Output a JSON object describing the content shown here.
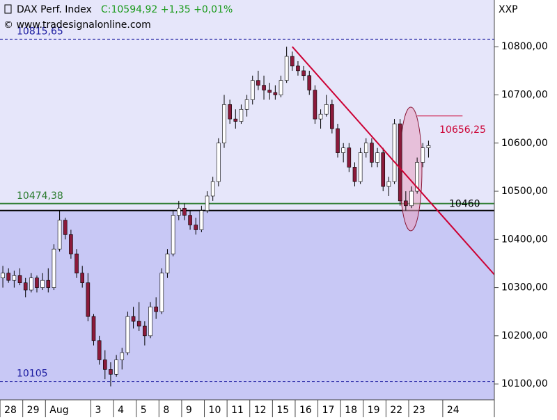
{
  "chart_data": {
    "type": "candlestick",
    "title": "DAX Perf. Index",
    "quote": "C:10594,92 +1,35 +0,01%",
    "source": "© www.tradesignalonline.com",
    "symbol": "XXP",
    "ylim": [
      10067,
      10897
    ],
    "yticks": [
      {
        "value": 10100,
        "label": "10100,00"
      },
      {
        "value": 10200,
        "label": "10200,00"
      },
      {
        "value": 10300,
        "label": "10300,00"
      },
      {
        "value": 10400,
        "label": "10400,00"
      },
      {
        "value": 10500,
        "label": "10500,00"
      },
      {
        "value": 10600,
        "label": "10600,00"
      },
      {
        "value": 10700,
        "label": "10700,00"
      },
      {
        "value": 10800,
        "label": "10800,00"
      }
    ],
    "xlim": [
      -0.5,
      86.6
    ],
    "xticks": [
      {
        "value": 0,
        "label": "28"
      },
      {
        "value": 4,
        "label": "29"
      },
      {
        "value": 8,
        "label": "Aug"
      },
      {
        "value": 16,
        "label": "3"
      },
      {
        "value": 20,
        "label": "4"
      },
      {
        "value": 24,
        "label": "5"
      },
      {
        "value": 28,
        "label": "8"
      },
      {
        "value": 32,
        "label": "9"
      },
      {
        "value": 36,
        "label": "10"
      },
      {
        "value": 40,
        "label": "11"
      },
      {
        "value": 44,
        "label": "12"
      },
      {
        "value": 48,
        "label": "15"
      },
      {
        "value": 52,
        "label": "16"
      },
      {
        "value": 56,
        "label": "17"
      },
      {
        "value": 60,
        "label": "18"
      },
      {
        "value": 64,
        "label": "19"
      },
      {
        "value": 68,
        "label": "22"
      },
      {
        "value": 72,
        "label": "23"
      },
      {
        "value": 78,
        "label": "24"
      }
    ],
    "up_color": "#ffffff",
    "down_color": "#8b1a3a",
    "ohlc": [
      [
        10320,
        10345,
        10300,
        10330
      ],
      [
        10330,
        10340,
        10310,
        10315
      ],
      [
        10315,
        10335,
        10300,
        10325
      ],
      [
        10325,
        10340,
        10305,
        10310
      ],
      [
        10310,
        10320,
        10280,
        10295
      ],
      [
        10295,
        10330,
        10290,
        10320
      ],
      [
        10320,
        10325,
        10290,
        10300
      ],
      [
        10300,
        10330,
        10295,
        10315
      ],
      [
        10315,
        10340,
        10290,
        10300
      ],
      [
        10300,
        10390,
        10295,
        10380
      ],
      [
        10380,
        10460,
        10375,
        10440
      ],
      [
        10440,
        10445,
        10400,
        10410
      ],
      [
        10410,
        10420,
        10360,
        10370
      ],
      [
        10370,
        10380,
        10320,
        10330
      ],
      [
        10330,
        10345,
        10300,
        10310
      ],
      [
        10310,
        10330,
        10230,
        10240
      ],
      [
        10240,
        10245,
        10180,
        10190
      ],
      [
        10190,
        10200,
        10140,
        10150
      ],
      [
        10150,
        10170,
        10110,
        10130
      ],
      [
        10130,
        10145,
        10095,
        10120
      ],
      [
        10120,
        10160,
        10115,
        10150
      ],
      [
        10150,
        10175,
        10130,
        10165
      ],
      [
        10165,
        10250,
        10160,
        10240
      ],
      [
        10240,
        10260,
        10215,
        10230
      ],
      [
        10230,
        10270,
        10210,
        10220
      ],
      [
        10220,
        10230,
        10180,
        10200
      ],
      [
        10200,
        10270,
        10195,
        10260
      ],
      [
        10260,
        10280,
        10235,
        10250
      ],
      [
        10250,
        10340,
        10245,
        10330
      ],
      [
        10330,
        10380,
        10320,
        10370
      ],
      [
        10370,
        10460,
        10365,
        10450
      ],
      [
        10450,
        10480,
        10440,
        10465
      ],
      [
        10465,
        10475,
        10440,
        10450
      ],
      [
        10450,
        10460,
        10420,
        10430
      ],
      [
        10430,
        10445,
        10410,
        10420
      ],
      [
        10420,
        10470,
        10415,
        10460
      ],
      [
        10460,
        10500,
        10455,
        10490
      ],
      [
        10490,
        10530,
        10480,
        10520
      ],
      [
        10520,
        10610,
        10510,
        10600
      ],
      [
        10600,
        10700,
        10590,
        10680
      ],
      [
        10680,
        10690,
        10640,
        10650
      ],
      [
        10650,
        10670,
        10630,
        10645
      ],
      [
        10645,
        10680,
        10640,
        10670
      ],
      [
        10670,
        10700,
        10655,
        10690
      ],
      [
        10690,
        10740,
        10680,
        10730
      ],
      [
        10730,
        10750,
        10710,
        10720
      ],
      [
        10720,
        10740,
        10690,
        10710
      ],
      [
        10710,
        10725,
        10690,
        10705
      ],
      [
        10705,
        10720,
        10690,
        10700
      ],
      [
        10700,
        10740,
        10695,
        10730
      ],
      [
        10730,
        10800,
        10725,
        10780
      ],
      [
        10780,
        10790,
        10750,
        10760
      ],
      [
        10760,
        10770,
        10740,
        10750
      ],
      [
        10750,
        10760,
        10730,
        10740
      ],
      [
        10740,
        10750,
        10700,
        10710
      ],
      [
        10710,
        10720,
        10640,
        10650
      ],
      [
        10650,
        10670,
        10630,
        10660
      ],
      [
        10660,
        10700,
        10655,
        10680
      ],
      [
        10680,
        10690,
        10620,
        10630
      ],
      [
        10630,
        10640,
        10570,
        10580
      ],
      [
        10580,
        10600,
        10560,
        10590
      ],
      [
        10590,
        10600,
        10540,
        10550
      ],
      [
        10550,
        10560,
        10510,
        10520
      ],
      [
        10520,
        10590,
        10515,
        10580
      ],
      [
        10580,
        10610,
        10570,
        10600
      ],
      [
        10600,
        10610,
        10550,
        10560
      ],
      [
        10560,
        10590,
        10550,
        10580
      ],
      [
        10580,
        10590,
        10500,
        10510
      ],
      [
        10510,
        10530,
        10490,
        10520
      ],
      [
        10520,
        10650,
        10515,
        10640
      ],
      [
        10640,
        10650,
        10470,
        10480
      ],
      [
        10480,
        10500,
        10460,
        10470
      ],
      [
        10470,
        10510,
        10465,
        10500
      ],
      [
        10500,
        10570,
        10495,
        10560
      ],
      [
        10560,
        10600,
        10550,
        10590
      ],
      [
        10590,
        10605,
        10570,
        10594.92
      ]
    ],
    "levels": [
      {
        "value": 10815.65,
        "label": "10815,65",
        "color": "#1a1aa0",
        "dashed": true
      },
      {
        "value": 10105,
        "label": "10105",
        "color": "#1a1aa0",
        "dashed": true
      },
      {
        "value": 10474.38,
        "label": "10474,38",
        "color": "#2e7d32",
        "dashed": false
      },
      {
        "value": 10460,
        "label": "10460",
        "color": "#000000",
        "dashed": false
      }
    ],
    "marker": {
      "value": 10656.25,
      "label": "10656,25",
      "x": [
        73,
        81
      ],
      "color": "#cc0033"
    },
    "trendline": {
      "x": [
        51,
        86.6
      ],
      "values": [
        10800,
        10327
      ],
      "color": "#cc0033"
    }
  }
}
